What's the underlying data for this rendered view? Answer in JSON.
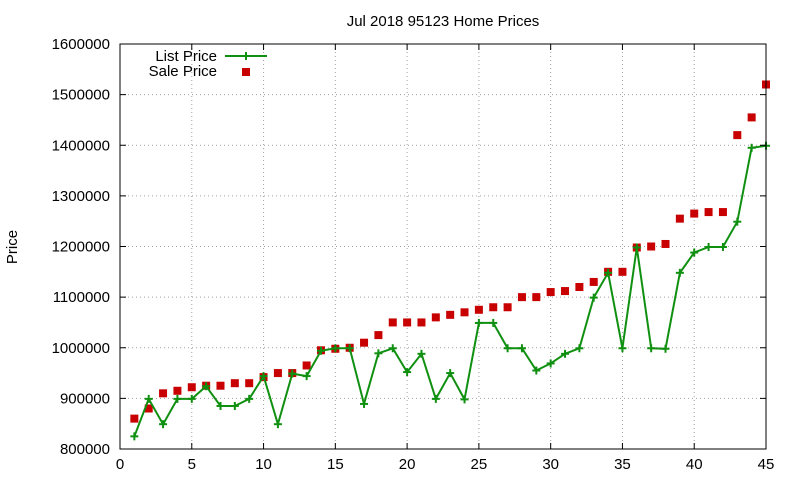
{
  "chart_data": {
    "type": "line",
    "title": "Jul 2018 95123 Home Prices",
    "xlabel": "",
    "ylabel": "Price",
    "xlim": [
      0,
      45
    ],
    "ylim": [
      800000,
      1600000
    ],
    "x_ticks": [
      0,
      5,
      10,
      15,
      20,
      25,
      30,
      35,
      40,
      45
    ],
    "x_tick_labels": [
      "0",
      "5",
      "10",
      "15",
      "20",
      "25",
      "30",
      "35",
      "40",
      "45"
    ],
    "y_ticks": [
      800000,
      900000,
      1000000,
      1100000,
      1200000,
      1300000,
      1400000,
      1500000,
      1600000
    ],
    "y_tick_labels": [
      "800000",
      "900000",
      "1000000",
      "1100000",
      "1200000",
      "1300000",
      "1400000",
      "1500000",
      "1600000"
    ],
    "grid": true,
    "legend_position": "top-left",
    "x": [
      1,
      2,
      3,
      4,
      5,
      6,
      7,
      8,
      9,
      10,
      11,
      12,
      13,
      14,
      15,
      16,
      17,
      18,
      19,
      20,
      21,
      22,
      23,
      24,
      25,
      26,
      27,
      28,
      29,
      30,
      31,
      32,
      33,
      34,
      35,
      36,
      37,
      38,
      39,
      40,
      41,
      42,
      43,
      44,
      45
    ],
    "series": [
      {
        "name": "List Price",
        "style": "line+cross",
        "color": "#109010",
        "values": [
          825000,
          899000,
          849000,
          899000,
          899000,
          924000,
          885000,
          885000,
          899000,
          944000,
          849000,
          949000,
          944000,
          994000,
          999000,
          999000,
          889000,
          989000,
          999000,
          952000,
          988000,
          899000,
          950000,
          898000,
          1049000,
          1049000,
          999000,
          999000,
          955000,
          969000,
          988000,
          999000,
          1099000,
          1148000,
          999000,
          1198000,
          999000,
          998000,
          1148000,
          1188000,
          1199000,
          1199000,
          1249000,
          1395000,
          1399000
        ]
      },
      {
        "name": "Sale Price",
        "style": "square",
        "color": "#c80000",
        "values": [
          860000,
          880000,
          910000,
          915000,
          922000,
          925000,
          925000,
          930000,
          930000,
          942000,
          950000,
          950000,
          965000,
          995000,
          998000,
          1000000,
          1010000,
          1025000,
          1050000,
          1050000,
          1050000,
          1060000,
          1065000,
          1070000,
          1075000,
          1080000,
          1080000,
          1100000,
          1100000,
          1110000,
          1112000,
          1120000,
          1130000,
          1150000,
          1150000,
          1198000,
          1200000,
          1205000,
          1255000,
          1265000,
          1268000,
          1268000,
          1420000,
          1455000,
          1520000
        ]
      }
    ]
  }
}
